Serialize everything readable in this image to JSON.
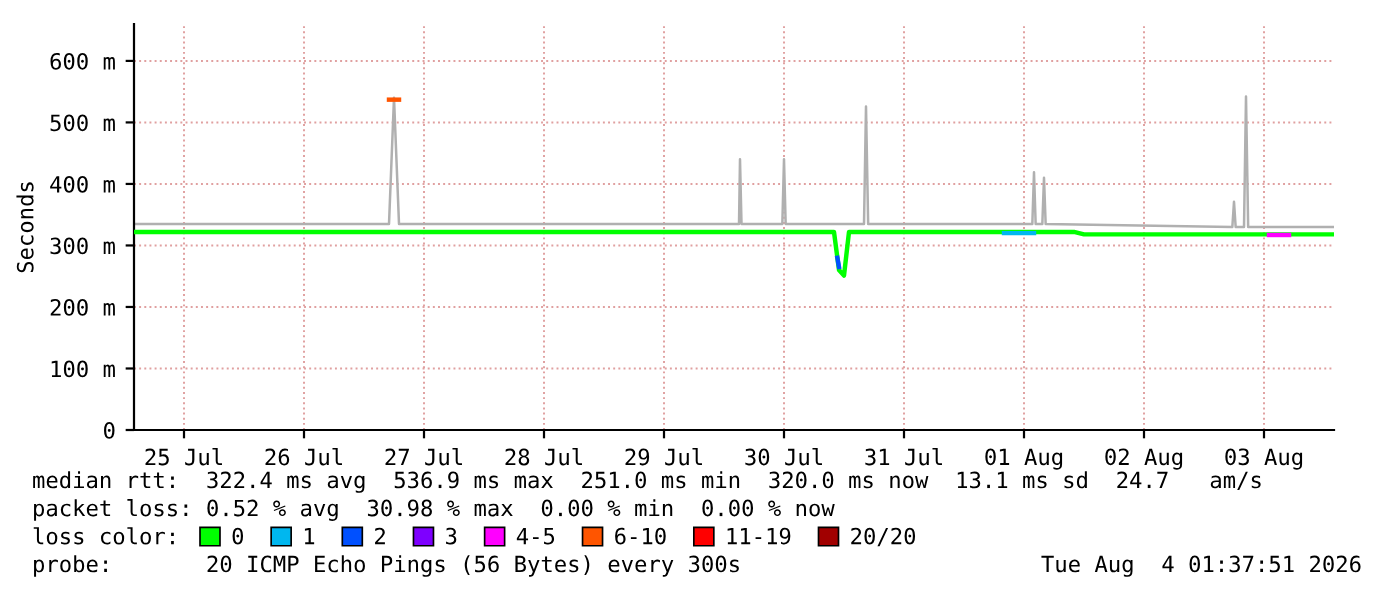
{
  "chart_data": {
    "type": "line",
    "ylabel": "Seconds",
    "xlim": [
      "2026-07-25T02:00",
      "2026-08-04T02:00"
    ],
    "ylim": [
      0,
      660
    ],
    "xticks": [
      {
        "value": "2026-07-25T12:00",
        "label": "25 Jul"
      },
      {
        "value": "2026-07-26T12:00",
        "label": "26 Jul"
      },
      {
        "value": "2026-07-27T12:00",
        "label": "27 Jul"
      },
      {
        "value": "2026-07-28T12:00",
        "label": "28 Jul"
      },
      {
        "value": "2026-07-29T12:00",
        "label": "29 Jul"
      },
      {
        "value": "2026-07-30T12:00",
        "label": "30 Jul"
      },
      {
        "value": "2026-07-31T12:00",
        "label": "31 Jul"
      },
      {
        "value": "2026-08-01T12:00",
        "label": "01 Aug"
      },
      {
        "value": "2026-08-02T12:00",
        "label": "02 Aug"
      },
      {
        "value": "2026-08-03T12:00",
        "label": "03 Aug"
      }
    ],
    "yticks": [
      0,
      {
        "value": 100,
        "label": "100 m"
      },
      {
        "value": 200,
        "label": "200 m"
      },
      {
        "value": 300,
        "label": "300 m"
      },
      {
        "value": 400,
        "label": "400 m"
      },
      {
        "value": 500,
        "label": "500 m"
      },
      {
        "value": 600,
        "label": "600 m"
      }
    ],
    "grid": true,
    "legend": "bottom",
    "legend_title": "loss color:",
    "marker": "none",
    "line_style": "solid",
    "series": [
      {
        "color": "#b0b0b0",
        "x": [
          "2026-07-25T02:00",
          "2026-07-27T05:00",
          "2026-07-27T06:00",
          "2026-07-27T07:00",
          "2026-07-30T03:00",
          "2026-07-30T03:12",
          "2026-07-30T03:30",
          "2026-07-30T11:40",
          "2026-07-30T12:00",
          "2026-07-30T12:20",
          "2026-07-31T04:00",
          "2026-07-31T04:24",
          "2026-07-31T04:50",
          "2026-08-01T13:40",
          "2026-08-01T14:00",
          "2026-08-01T14:20",
          "2026-08-01T15:40",
          "2026-08-01T16:00",
          "2026-08-01T16:20",
          "2026-08-03T05:40",
          "2026-08-03T06:00",
          "2026-08-03T06:20",
          "2026-08-03T08:00",
          "2026-08-03T08:24",
          "2026-08-03T08:50",
          "2026-08-04T02:00"
        ],
        "values": [
          335,
          335,
          540,
          335,
          335,
          440,
          335,
          335,
          440,
          335,
          335,
          526,
          335,
          335,
          419,
          335,
          335,
          410,
          335,
          330,
          371,
          330,
          330,
          542,
          330,
          330
        ]
      },
      {
        "name": "0",
        "color": "#00ff00",
        "x": [
          "2026-07-25T02:00",
          "2026-07-26T02:00",
          "2026-07-27T02:00",
          "2026-07-28T02:00",
          "2026-07-29T02:00",
          "2026-07-30T02:00",
          "2026-07-30T22:00",
          "2026-07-30T23:00",
          "2026-07-31T00:00",
          "2026-07-31T01:00",
          "2026-08-01T02:00",
          "2026-08-01T22:00",
          "2026-08-02T00:00",
          "2026-08-03T02:00",
          "2026-08-04T02:00"
        ],
        "values": [
          322,
          322,
          322,
          322,
          322,
          322,
          322,
          260,
          251,
          322,
          322,
          322,
          318,
          318,
          318
        ]
      },
      {
        "name": "1",
        "color": "#00b7ef",
        "x": [
          "2026-08-01T08:00",
          "2026-08-01T14:00"
        ],
        "values": [
          320,
          320
        ]
      },
      {
        "name": "2",
        "color": "#0050ff",
        "x": [
          "2026-07-30T22:40",
          "2026-07-30T23:00"
        ],
        "values": [
          280,
          265
        ]
      },
      {
        "name": "3",
        "color": "#7e00ff"
      },
      {
        "name": "4-5",
        "color": "#ff00ff",
        "x": [
          "2026-08-03T13:00",
          "2026-08-03T17:00"
        ],
        "values": [
          317,
          317
        ]
      },
      {
        "name": "6-10",
        "color": "#ff5500",
        "x": [
          "2026-07-27T05:00",
          "2026-07-27T07:00"
        ],
        "values": [
          537,
          537
        ]
      },
      {
        "name": "11-19",
        "color": "#ff0000"
      },
      {
        "name": "20/20",
        "color": "#a10000"
      }
    ],
    "annotations": [
      "median rtt:  322.4 ms avg  536.9 ms max  251.0 ms min  320.0 ms now  13.1 ms sd  24.7   am/s",
      "packet loss: 0.52 % avg  30.98 % max  0.00 % min  0.00 % now",
      "probe:       20 ICMP Echo Pings (56 Bytes) every 300s",
      "Tue Aug  4 01:37:51 2026"
    ]
  }
}
